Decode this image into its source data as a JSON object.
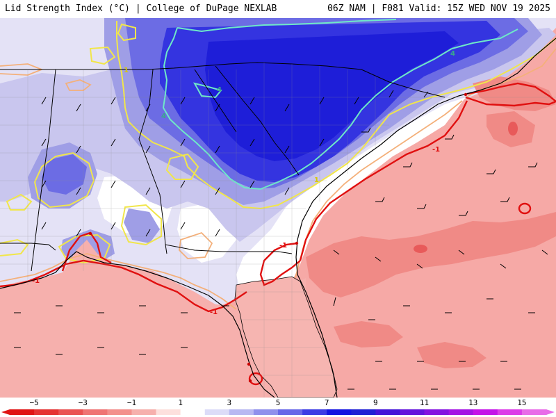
{
  "header": {
    "left_title": "Lid Strength Index (°C) | College of DuPage NEXLAB",
    "right_title": "06Z NAM | F081 Valid: 15Z WED NOV 19 2025"
  },
  "map": {
    "parameter": "Lid Strength Index",
    "units": "°C",
    "contour_labels": [
      "-1",
      "-1",
      "-1",
      "-1",
      "1",
      "1",
      "4",
      "4",
      "4"
    ],
    "colors": {
      "ocean_pink": "#f6a9a6",
      "salmon": "#f08a86",
      "deep_red_spot": "#e85a5a",
      "white_neutral": "#ffffff",
      "lavender": "#c9c6ee",
      "periwinkle": "#9f9ee6",
      "medium_blue": "#6c6ce4",
      "strong_blue": "#3434e0",
      "deep_blue": "#1e1ed8",
      "red_contour": "#e01010",
      "yellow_contour": "#f1e64a",
      "cyan_contour": "#6ee8c8",
      "border_black": "#000000",
      "county_gray": "#8c8c8c"
    }
  },
  "colorbar": {
    "tick_labels": [
      "−5",
      "−3",
      "−1",
      "1",
      "3",
      "5",
      "7",
      "9",
      "11",
      "13",
      "15"
    ],
    "min": -6,
    "max": 16,
    "bins": [
      {
        "from": -6,
        "to": -5,
        "color": "#e01414"
      },
      {
        "from": -5,
        "to": -4,
        "color": "#e53232"
      },
      {
        "from": -4,
        "to": -3,
        "color": "#ea5252"
      },
      {
        "from": -3,
        "to": -2,
        "color": "#ef7474"
      },
      {
        "from": -2,
        "to": -1,
        "color": "#f38f8c"
      },
      {
        "from": -1,
        "to": 0,
        "color": "#f6b0ad"
      },
      {
        "from": 0,
        "to": 1,
        "color": "#fde0dd"
      },
      {
        "from": 1,
        "to": 2,
        "color": "#ffffff"
      },
      {
        "from": 2,
        "to": 3,
        "color": "#dcdcf8"
      },
      {
        "from": 3,
        "to": 4,
        "color": "#b8b8f2"
      },
      {
        "from": 4,
        "to": 5,
        "color": "#9090ec"
      },
      {
        "from": 5,
        "to": 6,
        "color": "#6868e8"
      },
      {
        "from": 6,
        "to": 7,
        "color": "#3c3ce4"
      },
      {
        "from": 7,
        "to": 8,
        "color": "#1414e0"
      },
      {
        "from": 8,
        "to": 9,
        "color": "#2020d4"
      },
      {
        "from": 9,
        "to": 10,
        "color": "#4414d8"
      },
      {
        "from": 10,
        "to": 11,
        "color": "#6414dc"
      },
      {
        "from": 11,
        "to": 12,
        "color": "#8414e0"
      },
      {
        "from": 12,
        "to": 13,
        "color": "#a414e4"
      },
      {
        "from": 13,
        "to": 14,
        "color": "#c414e8"
      },
      {
        "from": 14,
        "to": 15,
        "color": "#dc3ce8"
      },
      {
        "from": 15,
        "to": 16,
        "color": "#e86ce8"
      }
    ]
  }
}
